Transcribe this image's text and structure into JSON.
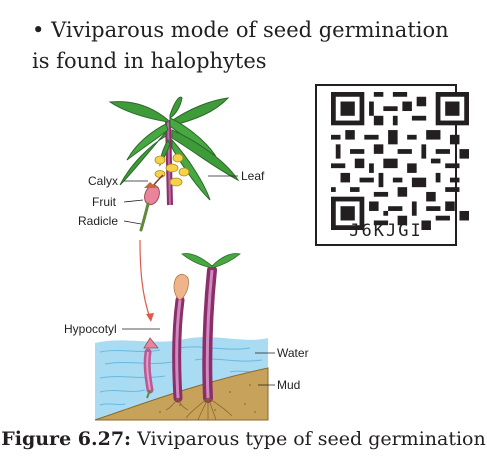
{
  "bullet": {
    "marker": "•",
    "text": "Viviparous mode of seed germination is found in halophytes"
  },
  "figure": {
    "labels": {
      "calyx": "Calyx",
      "fruit": "Fruit",
      "radicle": "Radicle",
      "leaf": "Leaf",
      "hypocotyl": "Hypocotyl",
      "water": "Water",
      "mud": "Mud"
    }
  },
  "qr": {
    "code": "J6KJGI"
  },
  "caption": {
    "number": "Figure 6.27:",
    "text": "Viviparous type of seed germination"
  },
  "colors": {
    "leaf": "#3f9a3a",
    "stem": "#9a3a7a",
    "water": "#9fd6f0",
    "mud": "#c7a25a",
    "arrow": "#e05a4a"
  }
}
